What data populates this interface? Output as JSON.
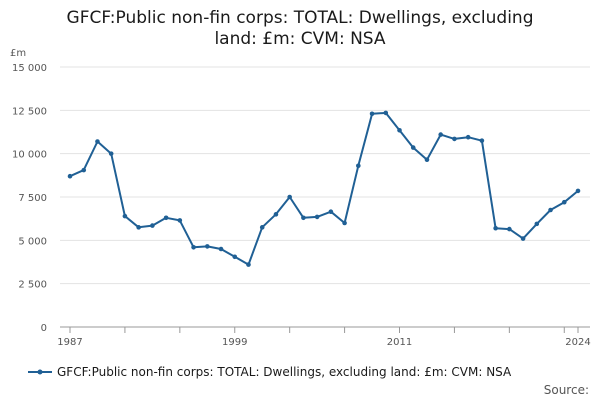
{
  "chart_data": {
    "type": "line",
    "title": "GFCF:Public non-fin corps: TOTAL: Dwellings, excluding land: £m: CVM: NSA",
    "ylabel": "£m",
    "xlabel": "",
    "ylim": [
      0,
      15000
    ],
    "xlim": [
      1987,
      2024
    ],
    "y_ticks": [
      0,
      2500,
      5000,
      7500,
      10000,
      12500,
      15000
    ],
    "y_tick_labels": [
      "0",
      "2 500",
      "5 000",
      "7 500",
      "10 000",
      "12 500",
      "15 000"
    ],
    "x_ticks": [
      1987,
      1999,
      2011,
      2024
    ],
    "x_tick_labels": [
      "1987",
      "1999",
      "2011",
      "2024"
    ],
    "grid": true,
    "legend_position": "bottom",
    "series": [
      {
        "name": "GFCF:Public non-fin corps: TOTAL: Dwellings, excluding land: £m: CVM: NSA",
        "color": "#206095",
        "x": [
          1987,
          1988,
          1989,
          1990,
          1991,
          1992,
          1993,
          1994,
          1995,
          1996,
          1997,
          1998,
          1999,
          2000,
          2001,
          2002,
          2003,
          2004,
          2005,
          2006,
          2007,
          2008,
          2009,
          2010,
          2011,
          2012,
          2013,
          2014,
          2015,
          2016,
          2017,
          2018,
          2019,
          2020,
          2021,
          2022,
          2023,
          2024
        ],
        "values": [
          8700,
          9050,
          10700,
          10000,
          6400,
          5750,
          5850,
          6300,
          6150,
          4600,
          4650,
          4500,
          4050,
          3600,
          5750,
          6500,
          7500,
          6300,
          6350,
          6650,
          6000,
          9300,
          12300,
          12350,
          11350,
          10350,
          9650,
          11100,
          10850,
          10950,
          10750,
          5700,
          5650,
          5100,
          5950,
          6750,
          7200,
          7850
        ]
      }
    ]
  },
  "source_label": "Source:"
}
